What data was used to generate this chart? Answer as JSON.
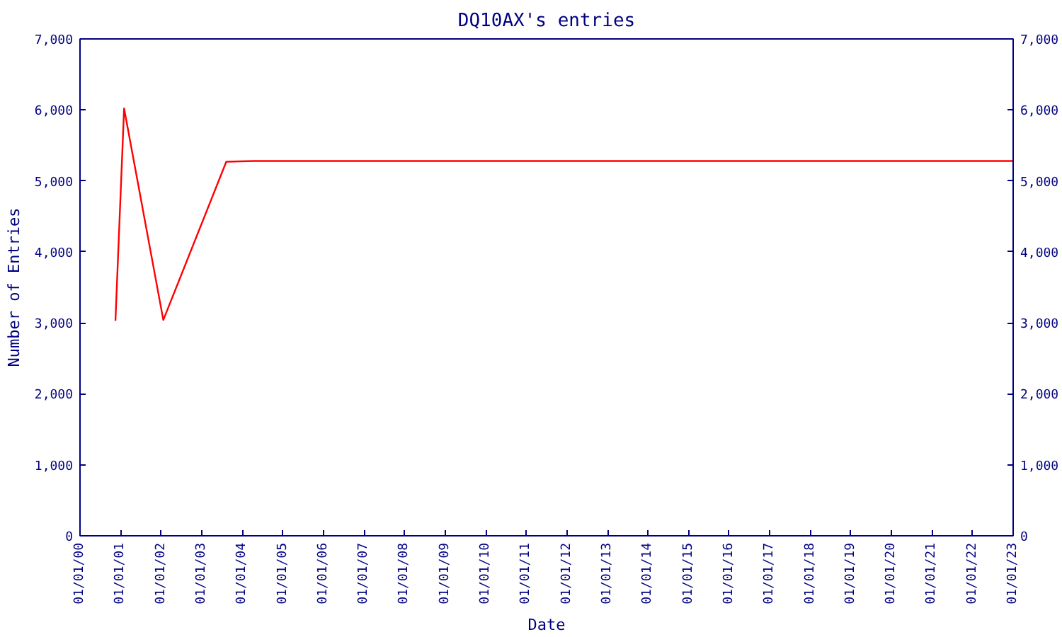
{
  "chart_data": {
    "type": "line",
    "title": "DQ10AX's entries",
    "xlabel": "Date",
    "ylabel": "Number of Entries",
    "series": [
      {
        "color": "#ff0000",
        "x": [
          "2000-11-15",
          "2001-02-01",
          "2002-01-20",
          "2003-08-10",
          "2004-04-10",
          "2022-12-28"
        ],
        "values": [
          3030,
          6020,
          3040,
          5270,
          5280,
          5280
        ]
      }
    ],
    "xlim": [
      "2000-01-01",
      "2023-01-01"
    ],
    "xticks": [
      {
        "value": "2000-01-01",
        "label": "01/01/00"
      },
      {
        "value": "2001-01-01",
        "label": "01/01/01"
      },
      {
        "value": "2002-01-01",
        "label": "01/01/02"
      },
      {
        "value": "2003-01-01",
        "label": "01/01/03"
      },
      {
        "value": "2004-01-01",
        "label": "01/01/04"
      },
      {
        "value": "2005-01-01",
        "label": "01/01/05"
      },
      {
        "value": "2006-01-01",
        "label": "01/01/06"
      },
      {
        "value": "2007-01-01",
        "label": "01/01/07"
      },
      {
        "value": "2008-01-01",
        "label": "01/01/08"
      },
      {
        "value": "2009-01-01",
        "label": "01/01/09"
      },
      {
        "value": "2010-01-01",
        "label": "01/01/10"
      },
      {
        "value": "2011-01-01",
        "label": "01/01/11"
      },
      {
        "value": "2012-01-01",
        "label": "01/01/12"
      },
      {
        "value": "2013-01-01",
        "label": "01/01/13"
      },
      {
        "value": "2014-01-01",
        "label": "01/01/14"
      },
      {
        "value": "2015-01-01",
        "label": "01/01/15"
      },
      {
        "value": "2016-01-01",
        "label": "01/01/16"
      },
      {
        "value": "2017-01-01",
        "label": "01/01/17"
      },
      {
        "value": "2018-01-01",
        "label": "01/01/18"
      },
      {
        "value": "2019-01-01",
        "label": "01/01/19"
      },
      {
        "value": "2020-01-01",
        "label": "01/01/20"
      },
      {
        "value": "2021-01-01",
        "label": "01/01/21"
      },
      {
        "value": "2022-01-01",
        "label": "01/01/22"
      },
      {
        "value": "2023-01-01",
        "label": "01/01/23"
      }
    ],
    "ylim": [
      0,
      7000
    ],
    "yticks": [
      0,
      {
        "value": 1000,
        "label": "1,000"
      },
      {
        "value": 2000,
        "label": "2,000"
      },
      {
        "value": 3000,
        "label": "3,000"
      },
      {
        "value": 4000,
        "label": "4,000"
      },
      {
        "value": 5000,
        "label": "5,000"
      },
      {
        "value": 6000,
        "label": "6,000"
      },
      {
        "value": 7000,
        "label": "7,000"
      }
    ],
    "y2lim": [
      0,
      7000
    ],
    "y2ticks": [
      0,
      {
        "value": 1000,
        "label": "1,000"
      },
      {
        "value": 2000,
        "label": "2,000"
      },
      {
        "value": 3000,
        "label": "3,000"
      },
      {
        "value": 4000,
        "label": "4,000"
      },
      {
        "value": 5000,
        "label": "5,000"
      },
      {
        "value": 6000,
        "label": "6,000"
      },
      {
        "value": 7000,
        "label": "7,000"
      }
    ],
    "grid": false,
    "marker": "none",
    "line_style": "solid"
  }
}
